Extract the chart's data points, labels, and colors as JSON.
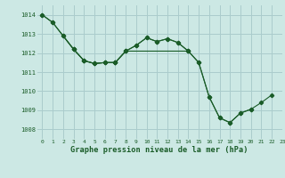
{
  "background_color": "#cce8e4",
  "grid_color": "#aacccc",
  "line_color": "#1a5c28",
  "title": "Graphe pression niveau de la mer (hPa)",
  "xlim": [
    -0.5,
    23
  ],
  "ylim": [
    1007.5,
    1014.5
  ],
  "yticks": [
    1008,
    1009,
    1010,
    1011,
    1012,
    1013,
    1014
  ],
  "xticks": [
    0,
    1,
    2,
    3,
    4,
    5,
    6,
    7,
    8,
    9,
    10,
    11,
    12,
    13,
    14,
    15,
    16,
    17,
    18,
    19,
    20,
    21,
    22,
    23
  ],
  "series": [
    {
      "x": [
        0,
        1,
        3,
        4,
        5,
        6,
        7
      ],
      "y": [
        1014.0,
        1013.6,
        1012.2,
        1011.6,
        1011.45,
        1011.5,
        1011.5
      ]
    },
    {
      "x": [
        2,
        3,
        4,
        5,
        6,
        7,
        8,
        9,
        10,
        11,
        12,
        13,
        14
      ],
      "y": [
        1012.9,
        1012.2,
        1011.6,
        1011.45,
        1011.5,
        1011.5,
        1012.1,
        1012.4,
        1012.8,
        1012.6,
        1012.75,
        1012.55,
        1012.1
      ]
    },
    {
      "x": [
        7,
        8,
        14,
        15,
        16,
        17,
        18,
        19,
        20
      ],
      "y": [
        1011.5,
        1012.1,
        1012.1,
        1011.5,
        1009.7,
        1008.6,
        1008.35,
        1008.85,
        1009.05
      ]
    },
    {
      "x": [
        0,
        1,
        2,
        3,
        4,
        5,
        6,
        7,
        8,
        9,
        10,
        11,
        12,
        13,
        14,
        15,
        16,
        17,
        18,
        19,
        20,
        21,
        22
      ],
      "y": [
        1014.0,
        1013.6,
        1012.9,
        1012.2,
        1011.6,
        1011.45,
        1011.5,
        1011.5,
        1012.1,
        1012.4,
        1012.8,
        1012.6,
        1012.75,
        1012.55,
        1012.1,
        1011.5,
        1009.7,
        1008.6,
        1008.35,
        1008.85,
        1009.05,
        1009.4,
        1009.8
      ]
    }
  ]
}
